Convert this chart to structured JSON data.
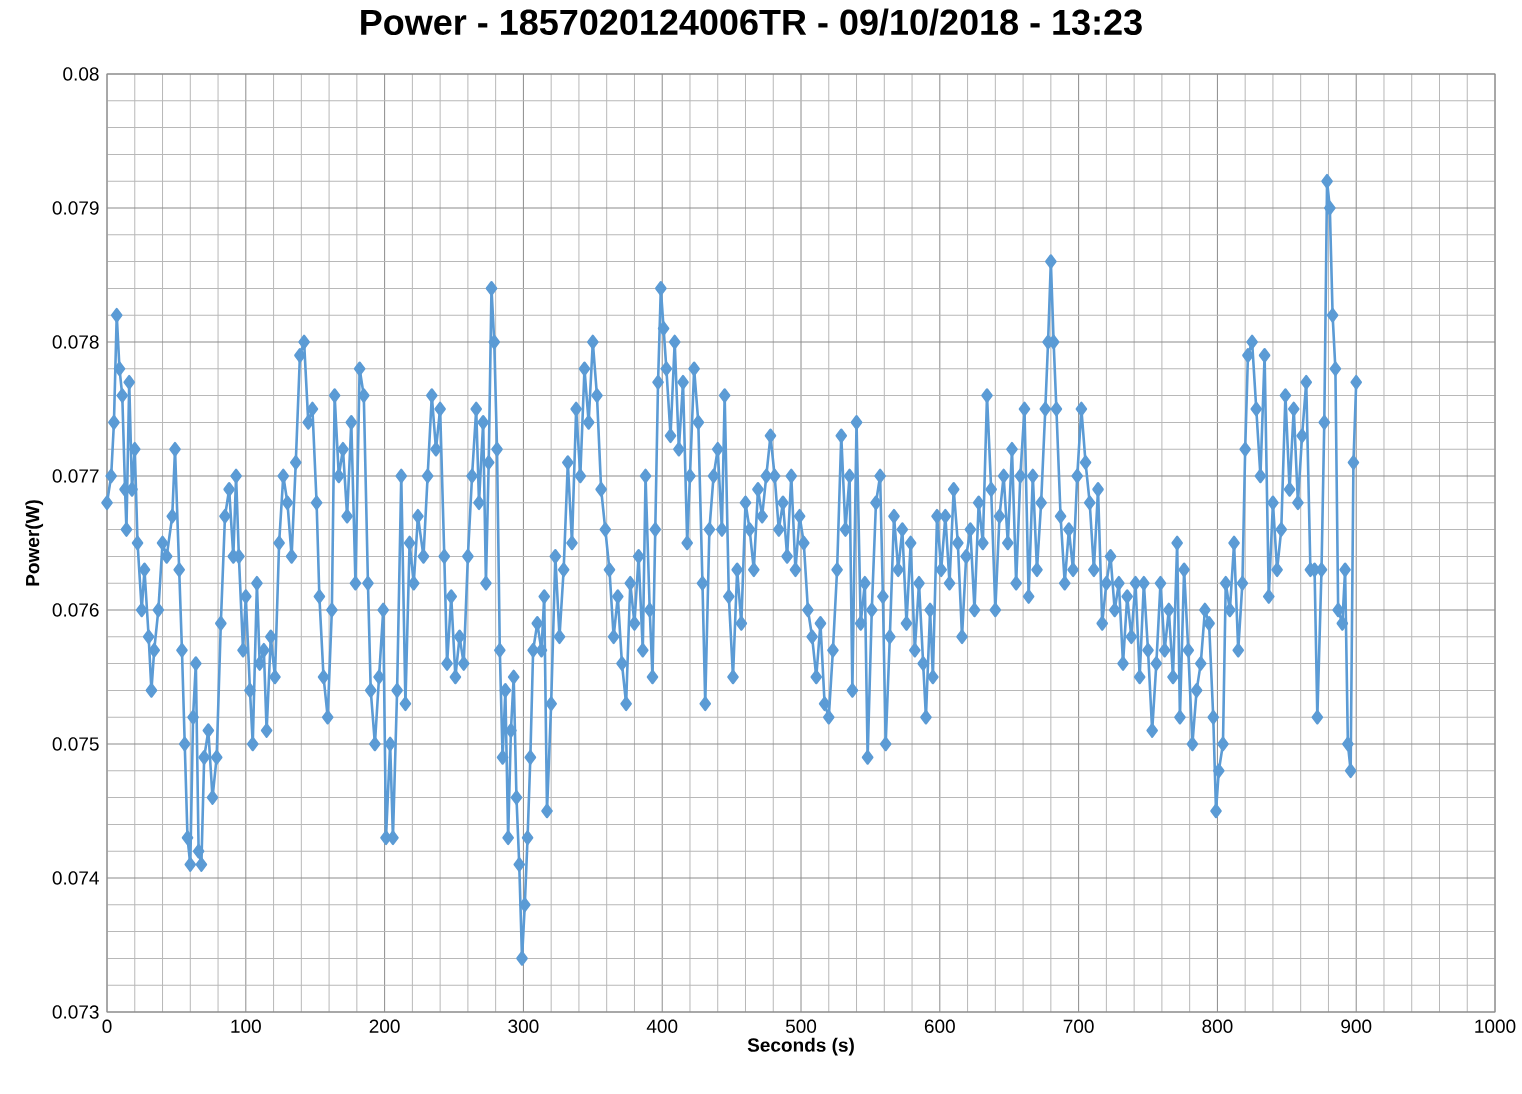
{
  "chart_data": {
    "type": "line",
    "title": "Power - 1857020124006TR - 09/10/2018 - 13:23",
    "xlabel": "Seconds (s)",
    "ylabel": "Power(W)",
    "xlim": [
      0,
      1000
    ],
    "xticks": [
      0,
      100,
      200,
      300,
      400,
      500,
      600,
      700,
      800,
      900,
      1000
    ],
    "ylim": [
      0.073,
      0.08
    ],
    "yticks": [
      0.073,
      0.074,
      0.075,
      0.076,
      0.077,
      0.078,
      0.079,
      0.08
    ],
    "grid": true,
    "marker": "diamond",
    "line_style": "solid",
    "series": [
      {
        "color": "#5b9bd5",
        "x": [
          0,
          3,
          5,
          7,
          9,
          11,
          13,
          14,
          16,
          18,
          20,
          22,
          25,
          27,
          30,
          32,
          34,
          37,
          40,
          43,
          47,
          49,
          52,
          54,
          56,
          58,
          60,
          62,
          64,
          66,
          68,
          70,
          73,
          76,
          79,
          82,
          85,
          88,
          91,
          93,
          95,
          98,
          100,
          103,
          105,
          108,
          110,
          113,
          115,
          118,
          121,
          124,
          127,
          130,
          133,
          136,
          139,
          142,
          145,
          148,
          151,
          153,
          156,
          159,
          162,
          164,
          167,
          170,
          173,
          176,
          179,
          182,
          185,
          188,
          190,
          193,
          196,
          199,
          201,
          204,
          206,
          209,
          212,
          215,
          218,
          221,
          224,
          228,
          231,
          234,
          237,
          240,
          243,
          245,
          248,
          251,
          254,
          257,
          260,
          263,
          266,
          268,
          271,
          273,
          275,
          277,
          279,
          281,
          283,
          285,
          287,
          289,
          291,
          293,
          295,
          297,
          299,
          301,
          303,
          305,
          307,
          310,
          313,
          315,
          317,
          320,
          323,
          326,
          329,
          332,
          335,
          338,
          341,
          344,
          347,
          350,
          353,
          356,
          359,
          362,
          365,
          368,
          371,
          374,
          377,
          380,
          383,
          386,
          388,
          391,
          393,
          395,
          397,
          399,
          401,
          403,
          406,
          409,
          412,
          415,
          418,
          420,
          423,
          426,
          429,
          431,
          434,
          437,
          440,
          443,
          445,
          448,
          451,
          454,
          457,
          460,
          463,
          466,
          469,
          472,
          475,
          478,
          481,
          484,
          487,
          490,
          493,
          496,
          499,
          502,
          505,
          508,
          511,
          514,
          517,
          520,
          523,
          526,
          529,
          532,
          535,
          537,
          540,
          543,
          546,
          548,
          551,
          554,
          557,
          559,
          561,
          564,
          567,
          570,
          573,
          576,
          579,
          582,
          585,
          588,
          590,
          593,
          595,
          598,
          601,
          604,
          607,
          610,
          613,
          616,
          619,
          622,
          625,
          628,
          631,
          634,
          637,
          640,
          643,
          646,
          649,
          652,
          655,
          658,
          661,
          664,
          667,
          670,
          673,
          676,
          678,
          680,
          682,
          684,
          687,
          690,
          693,
          696,
          699,
          702,
          705,
          708,
          711,
          714,
          717,
          720,
          723,
          726,
          729,
          732,
          735,
          738,
          741,
          744,
          747,
          750,
          753,
          756,
          759,
          762,
          765,
          768,
          771,
          773,
          776,
          779,
          782,
          785,
          788,
          791,
          794,
          797,
          799,
          801,
          804,
          806,
          809,
          812,
          815,
          818,
          820,
          822,
          825,
          828,
          831,
          834,
          837,
          840,
          843,
          846,
          849,
          852,
          855,
          858,
          861,
          864,
          867,
          870,
          872,
          875,
          877,
          879,
          881,
          883,
          885,
          887,
          890,
          892,
          894,
          896,
          898,
          900
        ],
        "values": [
          0.0768,
          0.077,
          0.0774,
          0.0782,
          0.0778,
          0.0776,
          0.0769,
          0.0766,
          0.0777,
          0.0769,
          0.0772,
          0.0765,
          0.076,
          0.0763,
          0.0758,
          0.0754,
          0.0757,
          0.076,
          0.0765,
          0.0764,
          0.0767,
          0.0772,
          0.0763,
          0.0757,
          0.075,
          0.0743,
          0.0741,
          0.0752,
          0.0756,
          0.0742,
          0.0741,
          0.0749,
          0.0751,
          0.0746,
          0.0749,
          0.0759,
          0.0767,
          0.0769,
          0.0764,
          0.077,
          0.0764,
          0.0757,
          0.0761,
          0.0754,
          0.075,
          0.0762,
          0.0756,
          0.0757,
          0.0751,
          0.0758,
          0.0755,
          0.0765,
          0.077,
          0.0768,
          0.0764,
          0.0771,
          0.0779,
          0.078,
          0.0774,
          0.0775,
          0.0768,
          0.0761,
          0.0755,
          0.0752,
          0.076,
          0.0776,
          0.077,
          0.0772,
          0.0767,
          0.0774,
          0.0762,
          0.0778,
          0.0776,
          0.0762,
          0.0754,
          0.075,
          0.0755,
          0.076,
          0.0743,
          0.075,
          0.0743,
          0.0754,
          0.077,
          0.0753,
          0.0765,
          0.0762,
          0.0767,
          0.0764,
          0.077,
          0.0776,
          0.0772,
          0.0775,
          0.0764,
          0.0756,
          0.0761,
          0.0755,
          0.0758,
          0.0756,
          0.0764,
          0.077,
          0.0775,
          0.0768,
          0.0774,
          0.0762,
          0.0771,
          0.0784,
          0.078,
          0.0772,
          0.0757,
          0.0749,
          0.0754,
          0.0743,
          0.0751,
          0.0755,
          0.0746,
          0.0741,
          0.0734,
          0.0738,
          0.0743,
          0.0749,
          0.0757,
          0.0759,
          0.0757,
          0.0761,
          0.0745,
          0.0753,
          0.0764,
          0.0758,
          0.0763,
          0.0771,
          0.0765,
          0.0775,
          0.077,
          0.0778,
          0.0774,
          0.078,
          0.0776,
          0.0769,
          0.0766,
          0.0763,
          0.0758,
          0.0761,
          0.0756,
          0.0753,
          0.0762,
          0.0759,
          0.0764,
          0.0757,
          0.077,
          0.076,
          0.0755,
          0.0766,
          0.0777,
          0.0784,
          0.0781,
          0.0778,
          0.0773,
          0.078,
          0.0772,
          0.0777,
          0.0765,
          0.077,
          0.0778,
          0.0774,
          0.0762,
          0.0753,
          0.0766,
          0.077,
          0.0772,
          0.0766,
          0.0776,
          0.0761,
          0.0755,
          0.0763,
          0.0759,
          0.0768,
          0.0766,
          0.0763,
          0.0769,
          0.0767,
          0.077,
          0.0773,
          0.077,
          0.0766,
          0.0768,
          0.0764,
          0.077,
          0.0763,
          0.0767,
          0.0765,
          0.076,
          0.0758,
          0.0755,
          0.0759,
          0.0753,
          0.0752,
          0.0757,
          0.0763,
          0.0773,
          0.0766,
          0.077,
          0.0754,
          0.0774,
          0.0759,
          0.0762,
          0.0749,
          0.076,
          0.0768,
          0.077,
          0.0761,
          0.075,
          0.0758,
          0.0767,
          0.0763,
          0.0766,
          0.0759,
          0.0765,
          0.0757,
          0.0762,
          0.0756,
          0.0752,
          0.076,
          0.0755,
          0.0767,
          0.0763,
          0.0767,
          0.0762,
          0.0769,
          0.0765,
          0.0758,
          0.0764,
          0.0766,
          0.076,
          0.0768,
          0.0765,
          0.0776,
          0.0769,
          0.076,
          0.0767,
          0.077,
          0.0765,
          0.0772,
          0.0762,
          0.077,
          0.0775,
          0.0761,
          0.077,
          0.0763,
          0.0768,
          0.0775,
          0.078,
          0.0786,
          0.078,
          0.0775,
          0.0767,
          0.0762,
          0.0766,
          0.0763,
          0.077,
          0.0775,
          0.0771,
          0.0768,
          0.0763,
          0.0769,
          0.0759,
          0.0762,
          0.0764,
          0.076,
          0.0762,
          0.0756,
          0.0761,
          0.0758,
          0.0762,
          0.0755,
          0.0762,
          0.0757,
          0.0751,
          0.0756,
          0.0762,
          0.0757,
          0.076,
          0.0755,
          0.0765,
          0.0752,
          0.0763,
          0.0757,
          0.075,
          0.0754,
          0.0756,
          0.076,
          0.0759,
          0.0752,
          0.0745,
          0.0748,
          0.075,
          0.0762,
          0.076,
          0.0765,
          0.0757,
          0.0762,
          0.0772,
          0.0779,
          0.078,
          0.0775,
          0.077,
          0.0779,
          0.0761,
          0.0768,
          0.0763,
          0.0766,
          0.0776,
          0.0769,
          0.0775,
          0.0768,
          0.0773,
          0.0777,
          0.0763,
          0.0763,
          0.0752,
          0.0763,
          0.0774,
          0.0792,
          0.079,
          0.0782,
          0.0778,
          0.076,
          0.0759,
          0.0763,
          0.075,
          0.0748,
          0.0771,
          0.0777
        ]
      }
    ]
  }
}
